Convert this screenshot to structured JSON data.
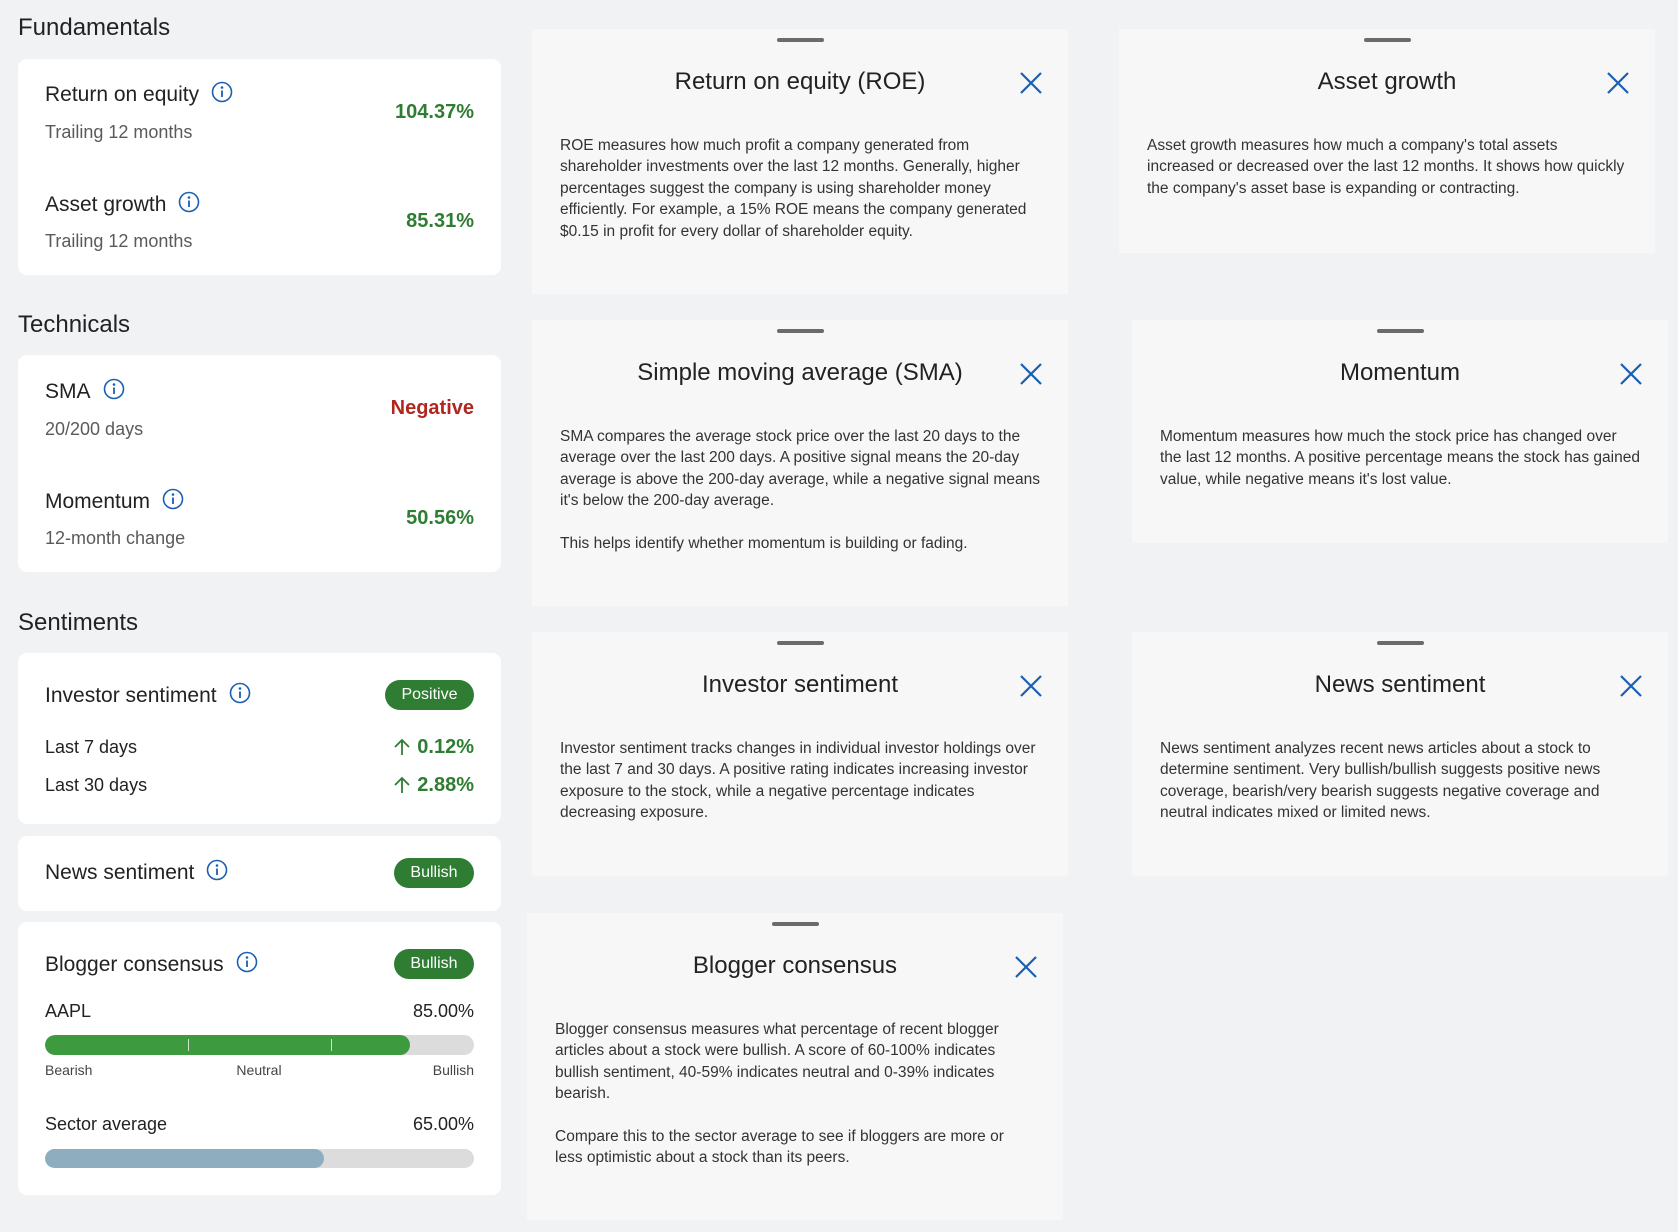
{
  "fundamentals": {
    "title": "Fundamentals",
    "items": [
      {
        "label": "Return on equity",
        "sublabel": "Trailing 12 months",
        "value": "104.37%"
      },
      {
        "label": "Asset growth",
        "sublabel": "Trailing 12 months",
        "value": "85.31%"
      }
    ]
  },
  "technicals": {
    "title": "Technicals",
    "items": [
      {
        "label": "SMA",
        "sublabel": "20/200 days",
        "value": "Negative"
      },
      {
        "label": "Momentum",
        "sublabel": "12-month change",
        "value": "50.56%"
      }
    ]
  },
  "sentiments": {
    "title": "Sentiments",
    "investor": {
      "label": "Investor sentiment",
      "badge": "Positive",
      "rows": [
        {
          "label": "Last 7 days",
          "value": "0.12%"
        },
        {
          "label": "Last 30 days",
          "value": "2.88%"
        }
      ]
    },
    "news": {
      "label": "News sentiment",
      "badge": "Bullish"
    },
    "blogger": {
      "label": "Blogger consensus",
      "badge": "Bullish",
      "xlim": [
        0,
        100
      ],
      "stock": {
        "label": "AAPL",
        "value": 85,
        "value_label": "85.00%"
      },
      "scale": [
        "Bearish",
        "Neutral",
        "Bullish"
      ],
      "sector": {
        "label": "Sector average",
        "value": 65,
        "value_label": "65.00%"
      }
    }
  },
  "popups": [
    {
      "title": "Return on equity (ROE)",
      "body": [
        "ROE measures how much profit a company generated from shareholder investments over the last 12 months. Generally, higher percentages suggest the company is using shareholder money efficiently. For example, a 15% ROE means the company generated $0.15 in profit for every dollar of shareholder equity."
      ]
    },
    {
      "title": "Asset growth",
      "body": [
        "Asset growth measures how much a company's total assets increased or decreased over the last 12 months. It shows how quickly the company's asset base is expanding or contracting."
      ]
    },
    {
      "title": "Simple moving average (SMA)",
      "body": [
        "SMA compares the average stock price over the last 20 days to the average over the last 200 days. A positive signal means the 20-day average is above the 200-day average, while a negative signal means it's below the 200-day average.",
        "This helps identify whether momentum is building or fading."
      ]
    },
    {
      "title": "Momentum",
      "body": [
        "Momentum measures how much the stock price has changed over the last 12 months. A positive percentage means the stock has gained value, while negative means it's lost value."
      ]
    },
    {
      "title": "Investor sentiment",
      "body": [
        "Investor sentiment tracks changes in individual investor holdings over the last 7 and 30 days. A positive rating indicates increasing investor exposure to the stock, while a negative percentage indicates decreasing exposure."
      ]
    },
    {
      "title": "News sentiment",
      "body": [
        "News sentiment analyzes recent news articles about a stock to determine sentiment. Very bullish/bullish suggests positive news coverage, bearish/very bearish suggests negative coverage and neutral indicates mixed or limited news."
      ]
    },
    {
      "title": "Blogger consensus",
      "body": [
        "Blogger consensus measures what percentage of recent blogger articles about a stock were bullish. A score of 60-100% indicates bullish sentiment, 40-59% indicates neutral and 0-39% indicates bearish.",
        "Compare this to the sector average to see if bloggers are more or less optimistic about a stock than its peers."
      ]
    }
  ]
}
